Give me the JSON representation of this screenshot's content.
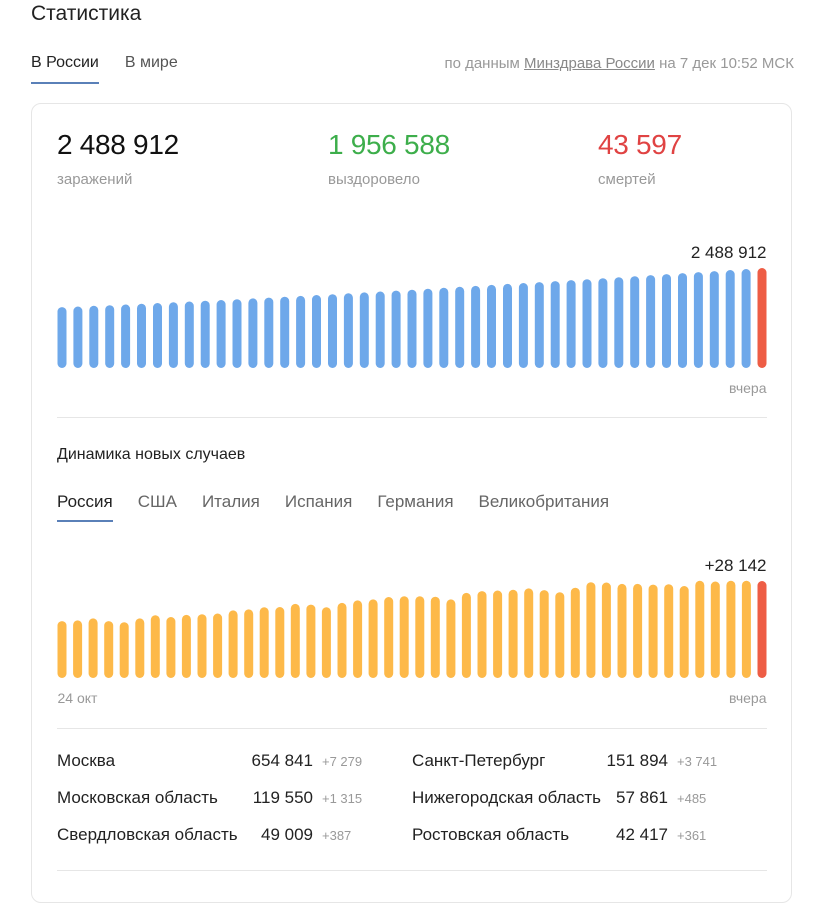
{
  "title": "Статистика",
  "tabs": [
    {
      "label": "В России",
      "active": true
    },
    {
      "label": "В мире",
      "active": false
    }
  ],
  "source": {
    "prefix": "по данным",
    "link": "Минздрава России",
    "suffix": "на 7 дек 10:52 МСК"
  },
  "totals": {
    "infected": {
      "value": "2 488 912",
      "label": "заражений",
      "color": "#111111"
    },
    "recovered": {
      "value": "1 956 588",
      "label": "выздоровело",
      "color": "#3dae4b"
    },
    "deaths": {
      "value": "43 597",
      "label": "смертей",
      "color": "#e04343"
    }
  },
  "colors": {
    "total_bars": "#6ea8ea",
    "new_bars": "#fdb949",
    "latest_bar": "#ee5d45",
    "tab_underline": "#5a80b8"
  },
  "dynamics": {
    "title": "Динамика новых случаев",
    "countries": [
      {
        "label": "Россия",
        "active": true
      },
      {
        "label": "США",
        "active": false
      },
      {
        "label": "Италия",
        "active": false
      },
      {
        "label": "Испания",
        "active": false
      },
      {
        "label": "Германия",
        "active": false
      },
      {
        "label": "Великобритания",
        "active": false
      }
    ]
  },
  "regions": [
    {
      "name": "Москва",
      "value": "654 841",
      "delta": "+7 279"
    },
    {
      "name": "Санкт-Петербург",
      "value": "151 894",
      "delta": "+3 741"
    },
    {
      "name": "Московская область",
      "value": "119 550",
      "delta": "+1 315"
    },
    {
      "name": "Нижегородская область",
      "value": "57 861",
      "delta": "+485"
    },
    {
      "name": "Свердловская область",
      "value": "49 009",
      "delta": "+387"
    },
    {
      "name": "Ростовская область",
      "value": "42 417",
      "delta": "+361"
    }
  ],
  "chart_data": [
    {
      "type": "bar",
      "categories_first": "",
      "categories_last": "вчера",
      "highlight_label": "2 488 912",
      "values": [
        1515000,
        1531000,
        1547000,
        1563000,
        1581000,
        1599000,
        1618000,
        1636000,
        1655000,
        1674000,
        1693000,
        1712000,
        1733000,
        1753000,
        1774000,
        1795000,
        1817000,
        1838000,
        1859000,
        1881000,
        1904000,
        1927000,
        1950000,
        1973000,
        1996000,
        2020000,
        2044000,
        2068000,
        2092000,
        2115000,
        2139000,
        2163000,
        2187000,
        2211000,
        2236000,
        2261000,
        2286000,
        2311000,
        2336000,
        2361000,
        2387000,
        2413000,
        2439000,
        2463000,
        2488912
      ],
      "ylim": [
        0,
        2488912
      ]
    },
    {
      "type": "bar",
      "categories_first": "24 окт",
      "categories_last": "вчера",
      "highlight_label": "+28 142",
      "values": [
        16500,
        16700,
        17300,
        16500,
        16200,
        17300,
        18200,
        17700,
        18300,
        18500,
        18700,
        19600,
        19900,
        20500,
        20600,
        21500,
        21300,
        20500,
        21800,
        22500,
        22800,
        23500,
        23700,
        23700,
        23600,
        22800,
        24700,
        25200,
        25400,
        25600,
        26000,
        25500,
        24900,
        26200,
        27800,
        27700,
        27300,
        27300,
        27100,
        27200,
        26700,
        28200,
        28000,
        28200,
        28200,
        28142
      ],
      "ylim": [
        0,
        28142
      ]
    }
  ]
}
